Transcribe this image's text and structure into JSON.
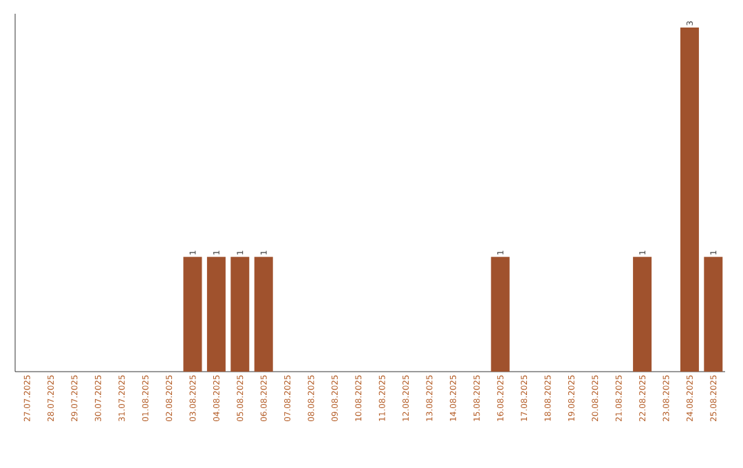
{
  "chart_data": {
    "type": "bar",
    "color": "#a0522d",
    "categories": [
      "27.07.2025",
      "28.07.2025",
      "29.07.2025",
      "30.07.2025",
      "31.07.2025",
      "01.08.2025",
      "02.08.2025",
      "03.08.2025",
      "04.08.2025",
      "05.08.2025",
      "06.08.2025",
      "07.08.2025",
      "08.08.2025",
      "09.08.2025",
      "10.08.2025",
      "11.08.2025",
      "12.08.2025",
      "13.08.2025",
      "14.08.2025",
      "15.08.2025",
      "16.08.2025",
      "17.08.2025",
      "18.08.2025",
      "19.08.2025",
      "20.08.2025",
      "21.08.2025",
      "22.08.2025",
      "23.08.2025",
      "24.08.2025",
      "25.08.2025"
    ],
    "values": [
      0,
      0,
      0,
      0,
      0,
      0,
      0,
      1,
      1,
      1,
      1,
      0,
      0,
      0,
      0,
      0,
      0,
      0,
      0,
      0,
      1,
      0,
      0,
      0,
      0,
      0,
      1,
      0,
      3,
      1
    ],
    "value_labels": [
      null,
      null,
      null,
      null,
      null,
      null,
      null,
      "1",
      "1",
      "1",
      "1",
      null,
      null,
      null,
      null,
      null,
      null,
      null,
      null,
      null,
      "1",
      null,
      null,
      null,
      null,
      null,
      "1",
      null,
      "3",
      "1"
    ]
  }
}
